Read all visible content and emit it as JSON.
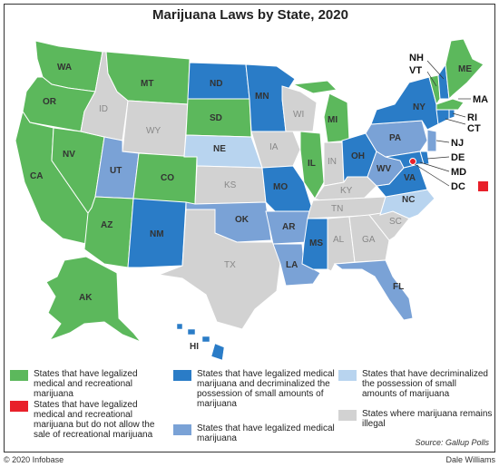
{
  "title": "Marijuana Laws by State, 2020",
  "colors": {
    "recreational": "#5cb85c",
    "rec_no_sale": "#e8202a",
    "medical_decrim": "#2a7cc7",
    "medical": "#7aa2d6",
    "decrim": "#b8d4ef",
    "illegal": "#d2d2d2",
    "ocean": "#ffffff",
    "label": "#555555",
    "callout_label": "#111111"
  },
  "states": {
    "WA": "WA",
    "OR": "OR",
    "CA": "CA",
    "NV": "NV",
    "ID": "ID",
    "MT": "MT",
    "WY": "WY",
    "UT": "UT",
    "CO": "CO",
    "AZ": "AZ",
    "NM": "NM",
    "ND": "ND",
    "SD": "SD",
    "NE": "NE",
    "KS": "KS",
    "OK": "OK",
    "TX": "TX",
    "MN": "MN",
    "IA": "IA",
    "MO": "MO",
    "AR": "AR",
    "LA": "LA",
    "WI": "WI",
    "IL": "IL",
    "MI": "MI",
    "IN": "IN",
    "OH": "OH",
    "KY": "KY",
    "TN": "TN",
    "MS": "MS",
    "AL": "AL",
    "GA": "GA",
    "FL": "FL",
    "SC": "SC",
    "NC": "NC",
    "VA": "VA",
    "WV": "WV",
    "PA": "PA",
    "NY": "NY",
    "ME": "ME",
    "AK": "AK",
    "HI": "HI",
    "NH": "NH",
    "VT": "VT",
    "MA": "MA",
    "RI": "RI",
    "CT": "CT",
    "NJ": "NJ",
    "DE": "DE",
    "MD": "MD",
    "DC": "DC"
  },
  "legend": {
    "recreational": "States that have legalized medical and recreational marijuana",
    "rec_no_sale": "States that have legalized medical and recreational marijuana but do not allow the sale of recreational marijuana",
    "medical_decrim": "States that have legalized medical marijuana and decriminalized the possession of small amounts of marijuana",
    "medical": "States that have legalized medical marijuana",
    "decrim": "States that have decriminalized the possession of small amounts of marijuana",
    "illegal": "States where marijuana remains illegal"
  },
  "source": "Source: Gallup Polls",
  "copyright": "© 2020 Infobase",
  "author": "Dale Williams"
}
